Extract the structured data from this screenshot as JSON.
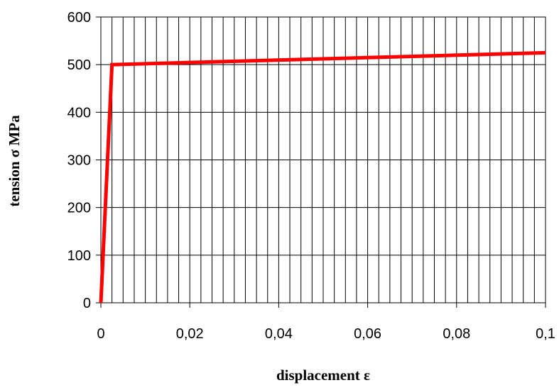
{
  "chart_data": {
    "type": "line",
    "title": "",
    "xlabel": "displacement ε",
    "ylabel": "tension σ  MPa",
    "xlim": [
      0,
      0.1
    ],
    "ylim": [
      0,
      600
    ],
    "x_ticks": [
      0,
      0.02,
      0.04,
      0.06,
      0.08,
      0.1
    ],
    "x_tick_labels": [
      "0",
      "0,02",
      "0,04",
      "0,06",
      "0,08",
      "0,1"
    ],
    "y_ticks": [
      0,
      100,
      200,
      300,
      400,
      500,
      600
    ],
    "y_tick_labels": [
      "0",
      "100",
      "200",
      "300",
      "400",
      "500",
      "600"
    ],
    "x_minor_gridline_step": 0.0025,
    "grid": true,
    "legend": "none",
    "series": [
      {
        "color": "#ff0000",
        "points": [
          {
            "x": 0,
            "y": 0
          },
          {
            "x": 0.0025,
            "y": 500
          },
          {
            "x": 0.1,
            "y": 525
          }
        ]
      }
    ]
  }
}
